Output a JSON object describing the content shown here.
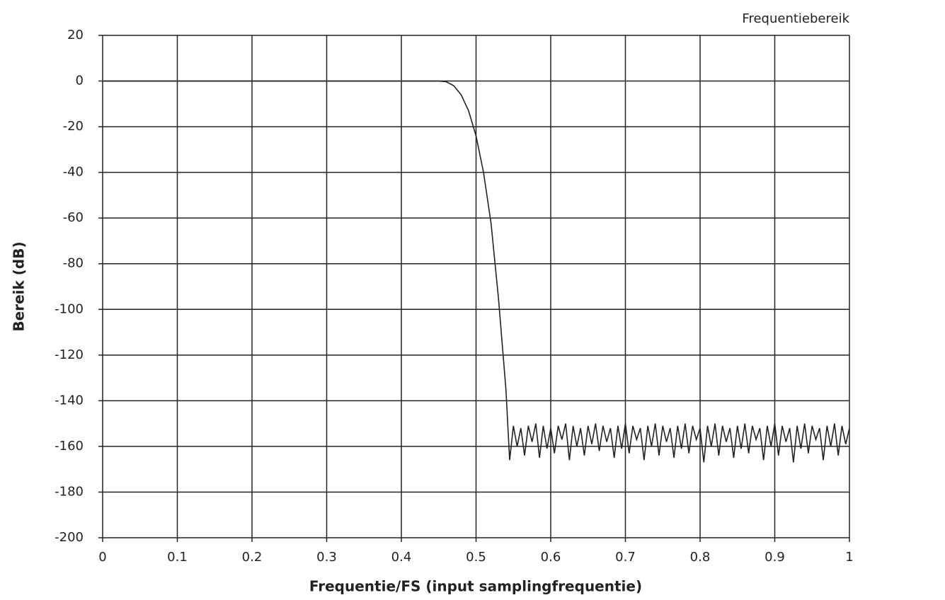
{
  "chart_data": {
    "type": "line",
    "title": "Frequentiebereik",
    "xlabel": "Frequentie/FS (input samplingfrequentie)",
    "ylabel": "Bereik (dB)",
    "x": [
      0,
      0.45,
      0.46,
      0.47,
      0.48,
      0.49,
      0.5,
      0.51,
      0.52,
      0.53,
      0.54,
      0.545,
      0.55,
      0.555,
      0.56,
      0.565,
      0.57,
      0.575,
      0.58,
      0.585,
      0.59,
      0.595,
      0.6,
      0.605,
      0.61,
      0.615,
      0.62,
      0.625,
      0.63,
      0.635,
      0.64,
      0.645,
      0.65,
      0.655,
      0.66,
      0.665,
      0.67,
      0.675,
      0.68,
      0.685,
      0.69,
      0.695,
      0.7,
      0.705,
      0.71,
      0.715,
      0.72,
      0.725,
      0.73,
      0.735,
      0.74,
      0.745,
      0.75,
      0.755,
      0.76,
      0.765,
      0.77,
      0.775,
      0.78,
      0.785,
      0.79,
      0.795,
      0.8,
      0.805,
      0.81,
      0.815,
      0.82,
      0.825,
      0.83,
      0.835,
      0.84,
      0.845,
      0.85,
      0.855,
      0.86,
      0.865,
      0.87,
      0.875,
      0.88,
      0.885,
      0.89,
      0.895,
      0.9,
      0.905,
      0.91,
      0.915,
      0.92,
      0.925,
      0.93,
      0.935,
      0.94,
      0.945,
      0.95,
      0.955,
      0.96,
      0.965,
      0.97,
      0.975,
      0.98,
      0.985,
      0.99,
      0.995,
      1.0
    ],
    "values": [
      0,
      0,
      -0.3,
      -2,
      -6,
      -13,
      -24,
      -40,
      -62,
      -95,
      -135,
      -166,
      -151,
      -160,
      -152,
      -164,
      -151,
      -158,
      -150,
      -165,
      -151,
      -161,
      -152,
      -163,
      -151,
      -157,
      -150,
      -166,
      -151,
      -160,
      -152,
      -164,
      -151,
      -159,
      -150,
      -162,
      -151,
      -158,
      -152,
      -165,
      -151,
      -161,
      -150,
      -163,
      -151,
      -157,
      -152,
      -166,
      -151,
      -160,
      -150,
      -164,
      -151,
      -158,
      -152,
      -165,
      -151,
      -161,
      -150,
      -163,
      -151,
      -157,
      -152,
      -167,
      -151,
      -160,
      -150,
      -164,
      -151,
      -158,
      -152,
      -165,
      -151,
      -161,
      -150,
      -163,
      -151,
      -157,
      -152,
      -166,
      -151,
      -160,
      -150,
      -164,
      -151,
      -158,
      -152,
      -167,
      -151,
      -161,
      -150,
      -163,
      -151,
      -157,
      -152,
      -166,
      -151,
      -160,
      -150,
      -164,
      -151,
      -159,
      -152
    ],
    "color": "#222222",
    "xlim": [
      0,
      1
    ],
    "xticks": [
      0,
      0.1,
      0.2,
      0.3,
      0.4,
      0.5,
      0.6,
      0.7,
      0.8,
      0.9,
      1
    ],
    "ylim": [
      -200,
      20
    ],
    "yticks": [
      -200,
      -180,
      -160,
      -140,
      -120,
      -100,
      -80,
      -60,
      -40,
      -20,
      0,
      20
    ],
    "grid": true
  }
}
